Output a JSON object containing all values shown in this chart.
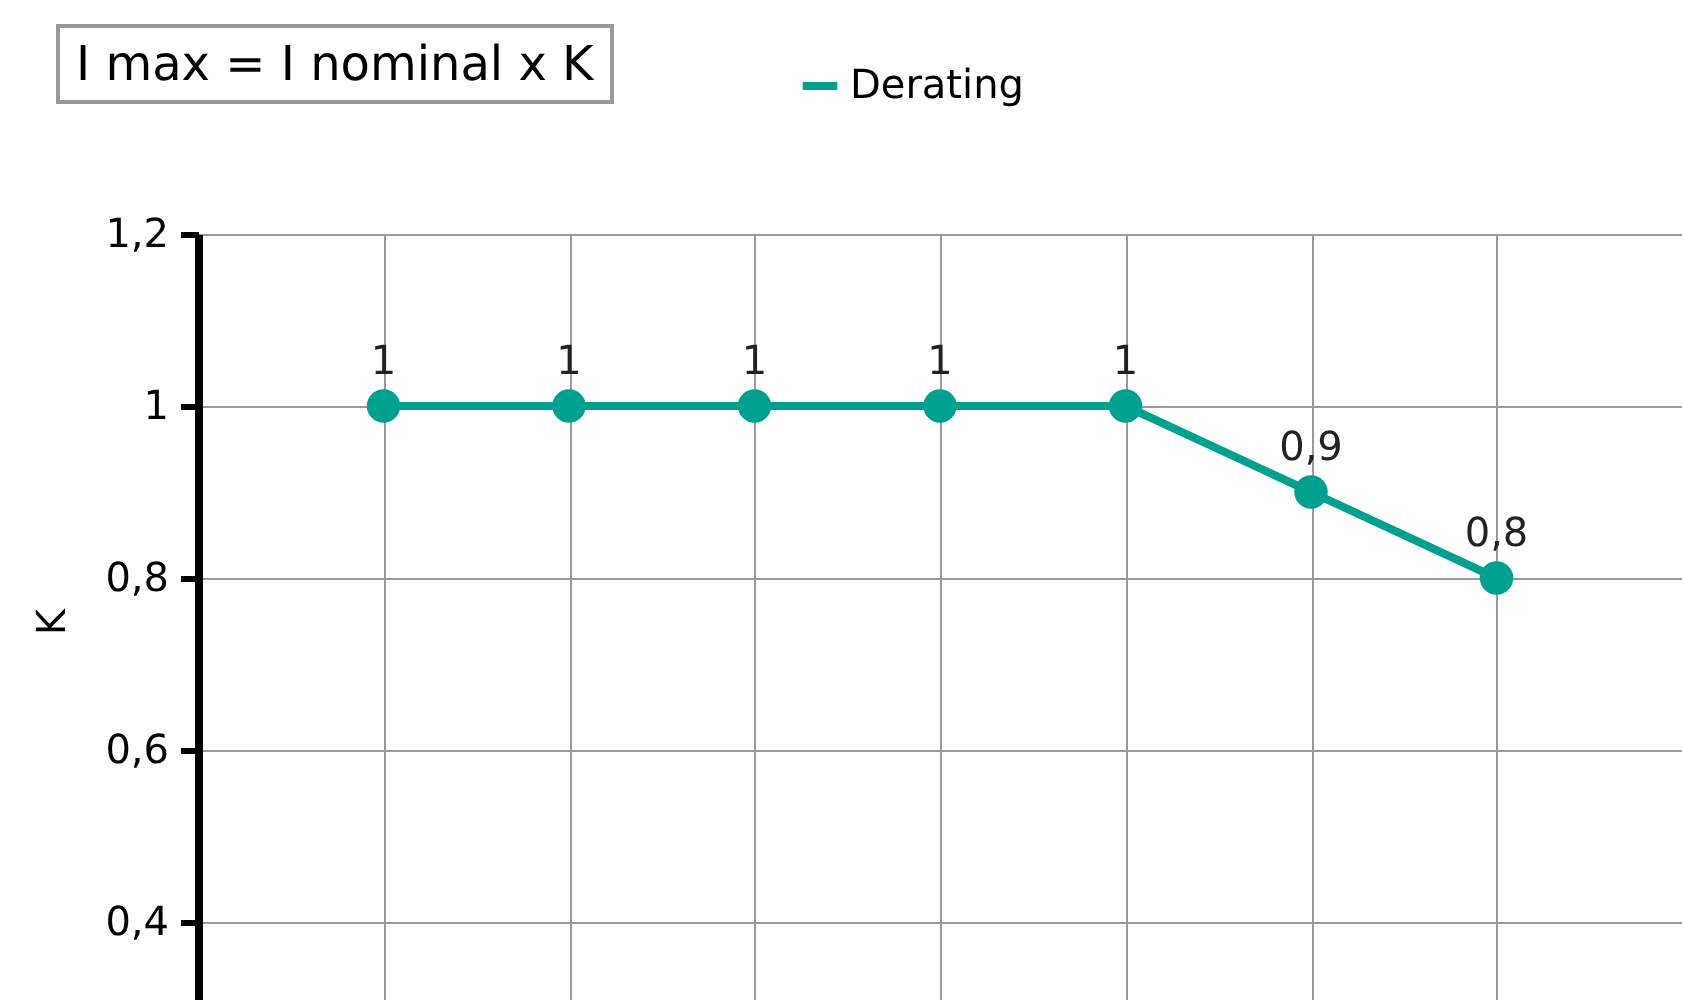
{
  "chart_data": {
    "type": "line",
    "ylabel": "K",
    "annotations": [
      "I max = I nominal x K"
    ],
    "categories": [
      null,
      null,
      null,
      null,
      null,
      null,
      null
    ],
    "series": [
      {
        "name": "Derating",
        "color": "#00a091",
        "values": [
          1,
          1,
          1,
          1,
          1,
          0.9,
          0.8
        ],
        "value_labels": [
          "1",
          "1",
          "1",
          "1",
          "1",
          "0,9",
          "0,8"
        ]
      }
    ],
    "ylim": [
      0.3,
      1.2
    ],
    "yticks": [
      {
        "value": 0.4,
        "label": "0,4"
      },
      {
        "value": 0.6,
        "label": "0,6"
      },
      {
        "value": 0.8,
        "label": "0,8"
      },
      {
        "value": 1,
        "label": "1"
      },
      {
        "value": 1.2,
        "label": "1,2"
      }
    ],
    "grid": true,
    "legend": "top",
    "marker": "circle",
    "line_style": "solid",
    "tick_labels": "y"
  }
}
